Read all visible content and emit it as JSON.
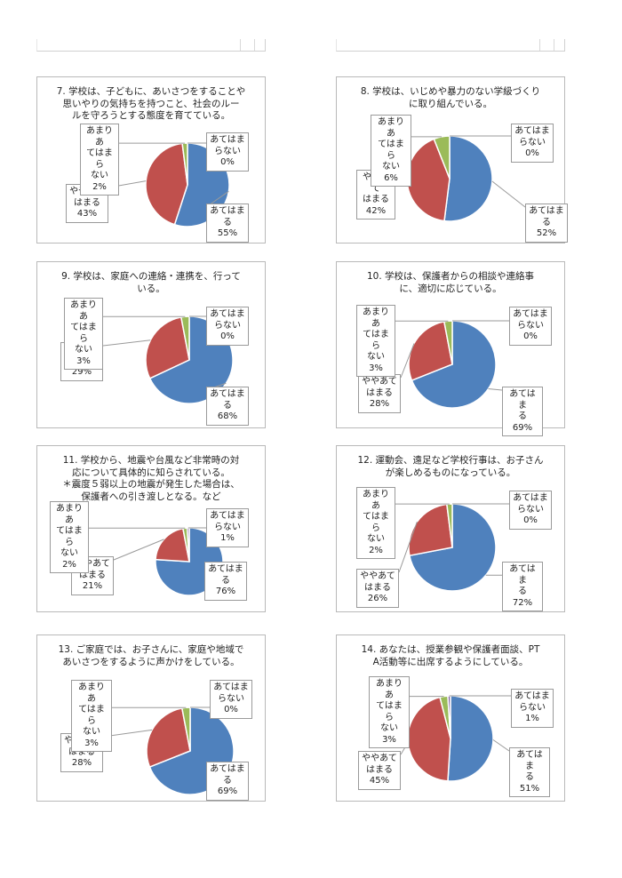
{
  "colors": {
    "apply": "#4f81bd",
    "somewhat": "#c0504d",
    "not_much": "#9bbb59",
    "not": "#8064a2",
    "leader": "#9a9a9a"
  },
  "chart_data": [
    {
      "id": "q7",
      "type": "pie",
      "title": "7. 学校は、子どもに、あいさつをすることや\n思いやりの気持ちを持つこと、社会のルー\nルを守ろうとする態度を育てている。",
      "labels": [
        "あてはま\nる",
        "ややあて\nはまる",
        "あまりあ\nてはまら\nない",
        "あてはま\nらない"
      ],
      "values": [
        55,
        43,
        2,
        0
      ],
      "percent_text": [
        "55%",
        "43%",
        "2%",
        "0%"
      ]
    },
    {
      "id": "q8",
      "type": "pie",
      "title": "8. 学校は、いじめや暴力のない学級づくり\nに取り組んでいる。",
      "labels": [
        "あてはま\nる",
        "ややあて\nはまる",
        "あまりあ\nてはまら\nない",
        "あてはま\nらない"
      ],
      "values": [
        52,
        42,
        6,
        0
      ],
      "percent_text": [
        "52%",
        "42%",
        "6%",
        "0%"
      ]
    },
    {
      "id": "q9",
      "type": "pie",
      "title": "9. 学校は、家庭への連絡・連携を、行って\nいる。",
      "labels": [
        "あてはま\nる",
        "ややあて\nはまる",
        "あまりあ\nてはまら\nない",
        "あてはま\nらない"
      ],
      "values": [
        68,
        29,
        3,
        0
      ],
      "percent_text": [
        "68%",
        "29%",
        "3%",
        "0%"
      ]
    },
    {
      "id": "q10",
      "type": "pie",
      "title": "10. 学校は、保護者からの相談や連絡事\nに、適切に応じている。",
      "labels": [
        "あてはま\nる",
        "ややあて\nはまる",
        "あまりあ\nてはまら\nない",
        "あてはま\nらない"
      ],
      "values": [
        69,
        28,
        3,
        0
      ],
      "percent_text": [
        "69%",
        "28%",
        "3%",
        "0%"
      ]
    },
    {
      "id": "q11",
      "type": "pie",
      "title": "11. 学校から、地震や台風など非常時の対\n応について具体的に知らされている。\n＊震度５弱以上の地震が発生した場合は、\n保護者への引き渡しとなる。など",
      "labels": [
        "あてはま\nる",
        "ややあて\nはまる",
        "あまりあ\nてはまら\nない",
        "あてはま\nらない"
      ],
      "values": [
        76,
        21,
        2,
        1
      ],
      "percent_text": [
        "76%",
        "21%",
        "2%",
        "1%"
      ]
    },
    {
      "id": "q12",
      "type": "pie",
      "title": "12. 運動会、遠足など学校行事は、お子さん\nが楽しめるものになっている。",
      "labels": [
        "あてはま\nる",
        "ややあて\nはまる",
        "あまりあ\nてはまら\nない",
        "あてはま\nらない"
      ],
      "values": [
        72,
        26,
        2,
        0
      ],
      "percent_text": [
        "72%",
        "26%",
        "2%",
        "0%"
      ]
    },
    {
      "id": "q13",
      "type": "pie",
      "title": "13. ご家庭では、お子さんに、家庭や地域で\nあいさつをするように声かけをしている。",
      "labels": [
        "あてはま\nる",
        "ややあて\nはまる",
        "あまりあ\nてはまら\nない",
        "あてはま\nらない"
      ],
      "values": [
        69,
        28,
        3,
        0
      ],
      "percent_text": [
        "69%",
        "28%",
        "3%",
        "0%"
      ]
    },
    {
      "id": "q14",
      "type": "pie",
      "title": "14. あなたは、授業参観や保護者面談、PT\nA活動等に出席するようにしている。",
      "labels": [
        "あてはま\nる",
        "ややあて\nはまる",
        "あまりあ\nてはまら\nない",
        "あてはま\nらない"
      ],
      "values": [
        51,
        45,
        3,
        1
      ],
      "percent_text": [
        "51%",
        "45%",
        "3%",
        "1%"
      ]
    }
  ]
}
